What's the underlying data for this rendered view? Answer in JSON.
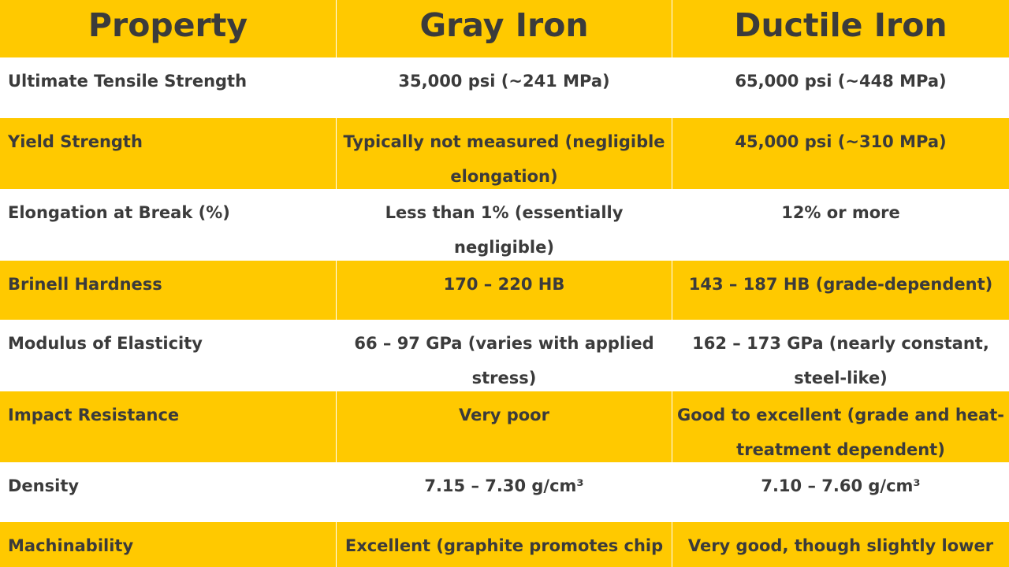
{
  "table": {
    "headers": [
      "Property",
      "Gray Iron",
      "Ductile Iron"
    ],
    "rows": [
      [
        "Ultimate Tensile Strength",
        "35,000 psi (~241 MPa)",
        "65,000 psi (~448 MPa)"
      ],
      [
        "Yield Strength",
        "Typically not measured (negligible elongation)",
        "45,000 psi (~310 MPa)"
      ],
      [
        "Elongation at Break (%)",
        "Less than 1% (essentially negligible)",
        "12% or more"
      ],
      [
        "Brinell Hardness",
        "170 – 220 HB",
        "143 – 187 HB (grade-dependent)"
      ],
      [
        "Modulus of Elasticity",
        "66 – 97 GPa (varies with applied stress)",
        "162 – 173 GPa (nearly constant, steel-like)"
      ],
      [
        "Impact Resistance",
        "Very poor",
        "Good to excellent (grade and heat-treatment dependent)"
      ],
      [
        "Density",
        "7.15 – 7.30 g/cm³",
        "7.10 – 7.60 g/cm³"
      ],
      [
        "Machinability",
        "Excellent (graphite promotes chip",
        "Very good, though slightly lower"
      ]
    ]
  },
  "colors": {
    "header_bg": "#ffc900",
    "band_bg": "#ffc900",
    "alt_bg": "#ffffff",
    "text": "#3b3b3b"
  }
}
